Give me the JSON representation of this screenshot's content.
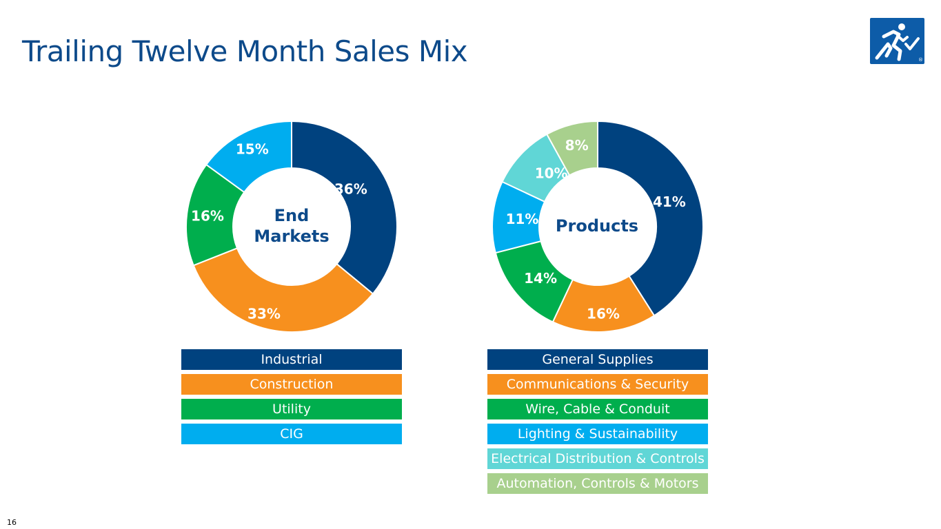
{
  "slide": {
    "title": "Trailing Twelve Month Sales Mix",
    "page_number": "16"
  },
  "logo": {
    "icon": "running-figure-checkmark-logo",
    "mark": "®"
  },
  "colors": {
    "navy": "#00427f",
    "orange": "#f7901e",
    "green": "#00ae4d",
    "sky": "#00adef",
    "teal": "#60d6d6",
    "sage": "#a8d08d",
    "heading": "#0d4a8a"
  },
  "chart_data": [
    {
      "type": "pie",
      "center_label": [
        "End",
        "Markets"
      ],
      "categories": [
        "Industrial",
        "Construction",
        "Utility",
        "CIG"
      ],
      "values": [
        36,
        33,
        16,
        15
      ],
      "data_labels": [
        "36%",
        "33%",
        "16%",
        "15%"
      ],
      "colors": [
        "#00427f",
        "#f7901e",
        "#00ae4d",
        "#00adef"
      ]
    },
    {
      "type": "pie",
      "center_label": [
        "Products"
      ],
      "categories": [
        "General Supplies",
        "Communications & Security",
        "Wire, Cable & Conduit",
        "Lighting & Sustainability",
        "Electrical Distribution & Controls",
        "Automation, Controls & Motors"
      ],
      "values": [
        41,
        16,
        14,
        11,
        10,
        8
      ],
      "data_labels": [
        "41%",
        "16%",
        "14%",
        "11%",
        "10%",
        "8%"
      ],
      "colors": [
        "#00427f",
        "#f7901e",
        "#00ae4d",
        "#00adef",
        "#60d6d6",
        "#a8d08d"
      ]
    }
  ]
}
